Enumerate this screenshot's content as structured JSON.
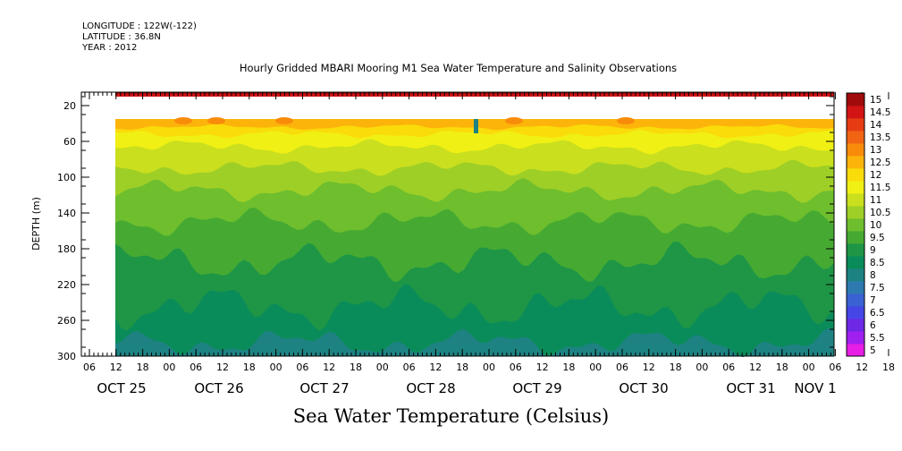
{
  "header": {
    "longitude": "LONGITUDE : 122W(-122)",
    "latitude": "LATITUDE : 36.8N",
    "year": "YEAR : 2012"
  },
  "title": "Hourly Gridded MBARI Mooring M1 Sea Water Temperature and Salinity Observations",
  "chart_data": {
    "type": "heatmap",
    "title": "Hourly Gridded MBARI Mooring M1 Sea Water Temperature and Salinity Observations",
    "bottom_title": "Sea Water Temperature (Celsius)",
    "ylabel": "DEPTH (m)",
    "y_axis": {
      "range": [
        5,
        300
      ],
      "inverted": true,
      "ticks": [
        20,
        60,
        100,
        140,
        180,
        220,
        260,
        300
      ],
      "tick_labels": [
        "20",
        "60",
        "100",
        "140",
        "180",
        "220",
        "260",
        "300"
      ]
    },
    "x_axis": {
      "hour_labels": [
        "06",
        "12",
        "18",
        "00",
        "06",
        "12",
        "18",
        "00",
        "06",
        "12",
        "18",
        "00",
        "06",
        "12",
        "18",
        "00",
        "06",
        "12",
        "18",
        "00",
        "06",
        "12",
        "18",
        "00",
        "06",
        "12",
        "18",
        "00",
        "06",
        "12",
        "18",
        "00"
      ],
      "day_labels": [
        "OCT 25",
        "OCT 26",
        "OCT 27",
        "OCT 28",
        "OCT 29",
        "OCT 30",
        "OCT 31",
        "NOV  1"
      ],
      "data_start": "OCT 25 12:00",
      "data_end": "NOV 1 ~06:00"
    },
    "colorbar": {
      "levels": [
        "5",
        "5.5",
        "6",
        "6.5",
        "7",
        "7.5",
        "8",
        "8.5",
        "9",
        "9.5",
        "10",
        "10.5",
        "11",
        "11.5",
        "12",
        "12.5",
        "13",
        "13.5",
        "14",
        "14.5",
        "15"
      ],
      "colors": [
        "#e61ee6",
        "#a020f0",
        "#6e28e6",
        "#4646e6",
        "#3a62d2",
        "#2e7ab0",
        "#1e8282",
        "#0a8c5a",
        "#1e9646",
        "#46aa32",
        "#6ebe2e",
        "#9ecf26",
        "#cadf1e",
        "#f0f014",
        "#fadc0a",
        "#fcb40a",
        "#f88c0a",
        "#f06414",
        "#e63c14",
        "#d21414",
        "#a00a0a"
      ]
    },
    "bands_approx": [
      {
        "depth_range": [
          5,
          10
        ],
        "temperature": "14.5-15"
      },
      {
        "depth_range": [
          10,
          35
        ],
        "temperature": "no data"
      },
      {
        "depth_range": [
          35,
          55
        ],
        "temperature": "11.5-13"
      },
      {
        "depth_range": [
          55,
          90
        ],
        "temperature": "10.5-11.5"
      },
      {
        "depth_range": [
          90,
          160
        ],
        "temperature": "9.5-10.5"
      },
      {
        "depth_range": [
          160,
          240
        ],
        "temperature": "8.5-9.5"
      },
      {
        "depth_range": [
          240,
          300
        ],
        "temperature": "7.5-8.5"
      }
    ]
  }
}
